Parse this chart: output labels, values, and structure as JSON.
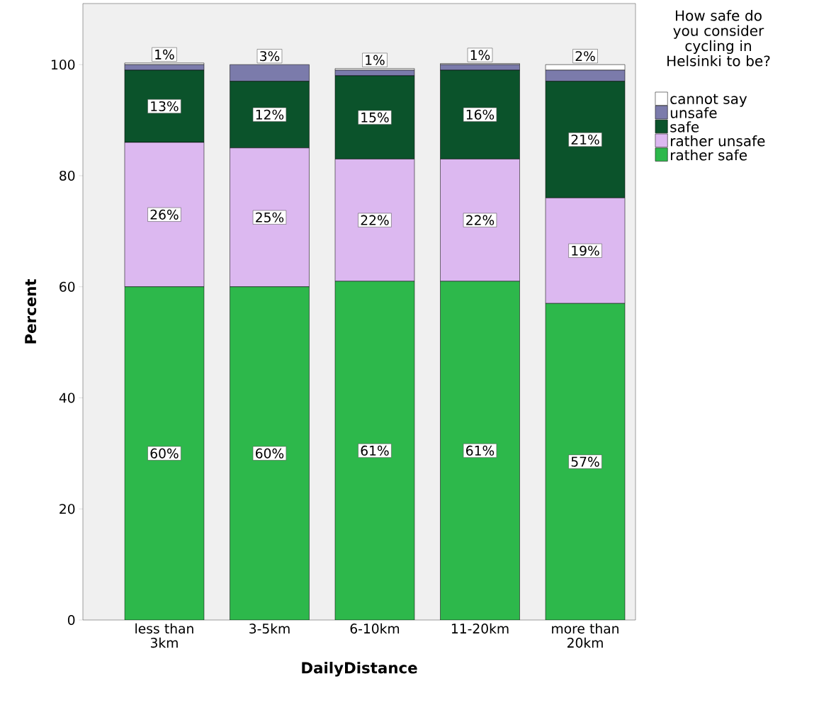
{
  "chart_data": {
    "type": "bar",
    "stacked": true,
    "xlabel": "DailyDistance",
    "ylabel": "Percent",
    "legend_title": "How safe do you consider cycling in Helsinki to be?",
    "legend": "right",
    "grid": false,
    "categories": [
      "less than 3km",
      "3-5km",
      "6-10km",
      "11-20km",
      "more than 20km"
    ],
    "ylim": [
      0,
      111
    ],
    "yticks": [
      0,
      20,
      40,
      60,
      80,
      100
    ],
    "series": [
      {
        "name": "rather safe",
        "color": "#2db84b",
        "values": [
          60,
          60,
          61,
          61,
          57
        ],
        "value_labels": [
          "60%",
          "60%",
          "61%",
          "61%",
          "57%"
        ]
      },
      {
        "name": "rather unsafe",
        "color": "#dcb8f0",
        "values": [
          26,
          25,
          22,
          22,
          19
        ],
        "value_labels": [
          "26%",
          "25%",
          "22%",
          "22%",
          "19%"
        ]
      },
      {
        "name": "safe",
        "color": "#0b532b",
        "values": [
          13,
          12,
          15,
          16,
          21
        ],
        "value_labels": [
          "13%",
          "12%",
          "15%",
          "16%",
          "21%"
        ]
      },
      {
        "name": "unsafe",
        "color": "#7b7bab",
        "values": [
          1,
          3,
          1,
          1,
          2
        ],
        "value_labels": [
          "1%",
          "3%",
          "1%",
          "1%",
          "2%"
        ]
      },
      {
        "name": "cannot say",
        "color": "#ffffff",
        "values": [
          0.3,
          0,
          0.3,
          0.2,
          1
        ],
        "value_labels": [
          null,
          null,
          null,
          null,
          null
        ]
      }
    ]
  }
}
